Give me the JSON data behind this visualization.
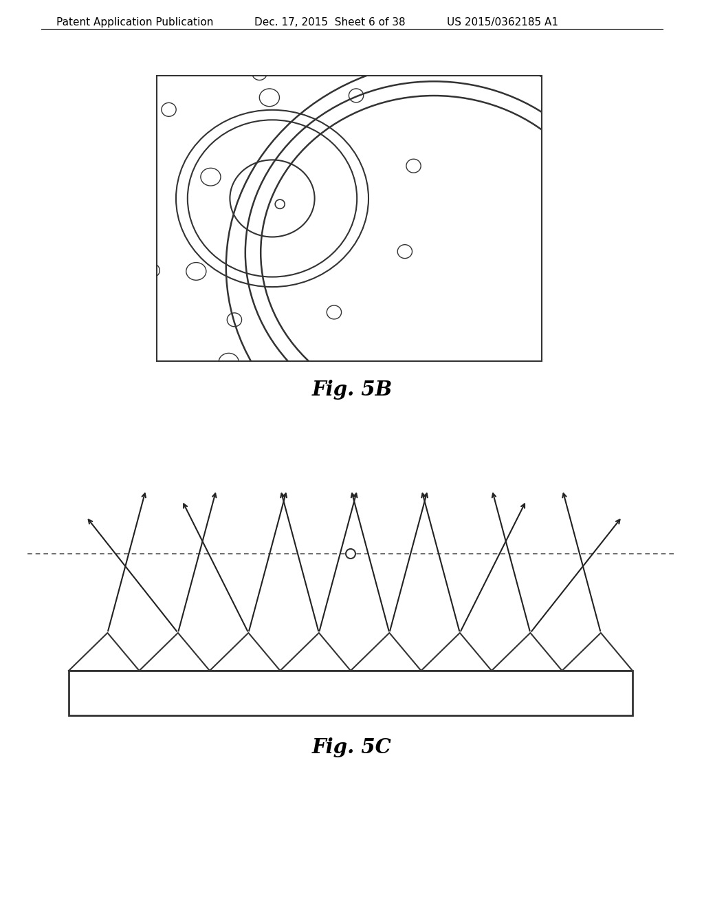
{
  "background_color": "#ffffff",
  "header_left": "Patent Application Publication",
  "header_center": "Dec. 17, 2015  Sheet 6 of 38",
  "header_right": "US 2015/0362185 A1",
  "header_fontsize": 11,
  "fig5b_label": "Fig. 5B",
  "fig5c_label": "Fig. 5C",
  "line_color": "#333333",
  "dash_color": "#555555",
  "arrow_color": "#222222"
}
